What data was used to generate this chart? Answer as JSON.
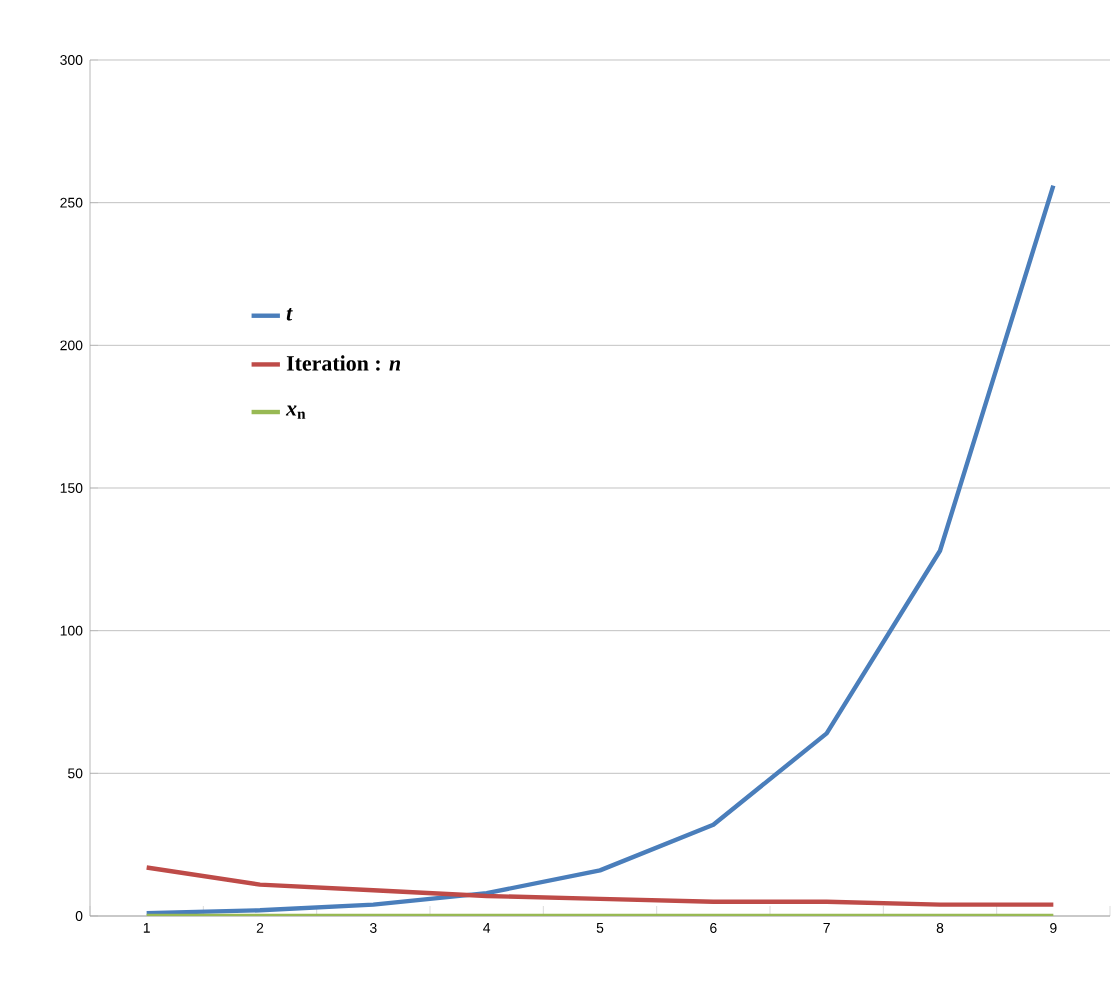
{
  "chart_data": {
    "type": "line",
    "categories": [
      "1",
      "2",
      "3",
      "4",
      "5",
      "6",
      "7",
      "8",
      "9"
    ],
    "series": [
      {
        "name": "*t*",
        "color": "#4a7ebb",
        "values": [
          1,
          2,
          4,
          8,
          16,
          32,
          64,
          128,
          256
        ]
      },
      {
        "name": "Iteration : *n*",
        "color": "#be4b48",
        "values": [
          17,
          11,
          9,
          7,
          6,
          5,
          5,
          4,
          4
        ]
      },
      {
        "name": "*x*$_{n}$",
        "color": "#98b954",
        "values": [
          0,
          0,
          0,
          0,
          0,
          0,
          0,
          0,
          0
        ]
      }
    ],
    "ylim": [
      0,
      300
    ],
    "yticks": [
      0,
      50,
      100,
      150,
      200,
      250,
      300
    ],
    "grid": "y",
    "legend": "top left",
    "marker": "none",
    "line_style": "solid"
  }
}
